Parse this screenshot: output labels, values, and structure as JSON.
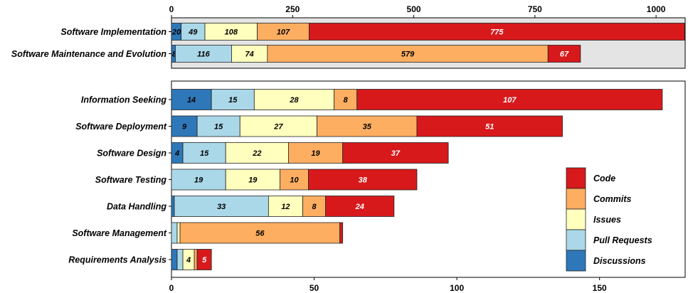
{
  "chart_data": [
    {
      "type": "bar",
      "orientation": "horizontal",
      "stacked": true,
      "panel_background": "#e4e4e4",
      "categories": [
        "Software Implementation",
        "Software Maintenance and Evolution"
      ],
      "xlim": [
        0,
        1060
      ],
      "xticks": [
        "0",
        "250",
        "500",
        "750",
        "1000"
      ],
      "xtick_values": [
        0,
        250,
        500,
        750,
        1000
      ],
      "axis_position": "top",
      "series": [
        {
          "name": "Discussions",
          "color": "#2e78b9",
          "values": [
            20,
            8
          ]
        },
        {
          "name": "Pull Requests",
          "color": "#abd8e9",
          "values": [
            49,
            116
          ]
        },
        {
          "name": "Issues",
          "color": "#ffffbe",
          "values": [
            108,
            74
          ]
        },
        {
          "name": "Commits",
          "color": "#fdae61",
          "values": [
            107,
            579
          ]
        },
        {
          "name": "Code",
          "color": "#d7191c",
          "values": [
            775,
            67
          ]
        }
      ]
    },
    {
      "type": "bar",
      "orientation": "horizontal",
      "stacked": true,
      "panel_background": "#ffffff",
      "categories": [
        "Information Seeking",
        "Software Deployment",
        "Software Design",
        "Software Testing",
        "Data Handling",
        "Software Management",
        "Requirements Analysis"
      ],
      "xlim": [
        0,
        180
      ],
      "xticks": [
        "0",
        "50",
        "100",
        "150"
      ],
      "xtick_values": [
        0,
        50,
        100,
        150
      ],
      "axis_position": "bottom",
      "series": [
        {
          "name": "Discussions",
          "color": "#2e78b9",
          "values": [
            14,
            9,
            4,
            0,
            1,
            0,
            2
          ]
        },
        {
          "name": "Pull Requests",
          "color": "#abd8e9",
          "values": [
            15,
            15,
            15,
            19,
            33,
            2,
            2
          ]
        },
        {
          "name": "Issues",
          "color": "#ffffbe",
          "values": [
            28,
            27,
            22,
            19,
            12,
            1,
            4
          ]
        },
        {
          "name": "Commits",
          "color": "#fdae61",
          "values": [
            8,
            35,
            19,
            10,
            8,
            56,
            1
          ]
        },
        {
          "name": "Code",
          "color": "#d7191c",
          "values": [
            107,
            51,
            37,
            38,
            24,
            1,
            5
          ]
        }
      ],
      "legend": {
        "placement": "bottom-right",
        "entries": [
          "Code",
          "Commits",
          "Issues",
          "Pull Requests",
          "Discussions"
        ]
      }
    }
  ]
}
